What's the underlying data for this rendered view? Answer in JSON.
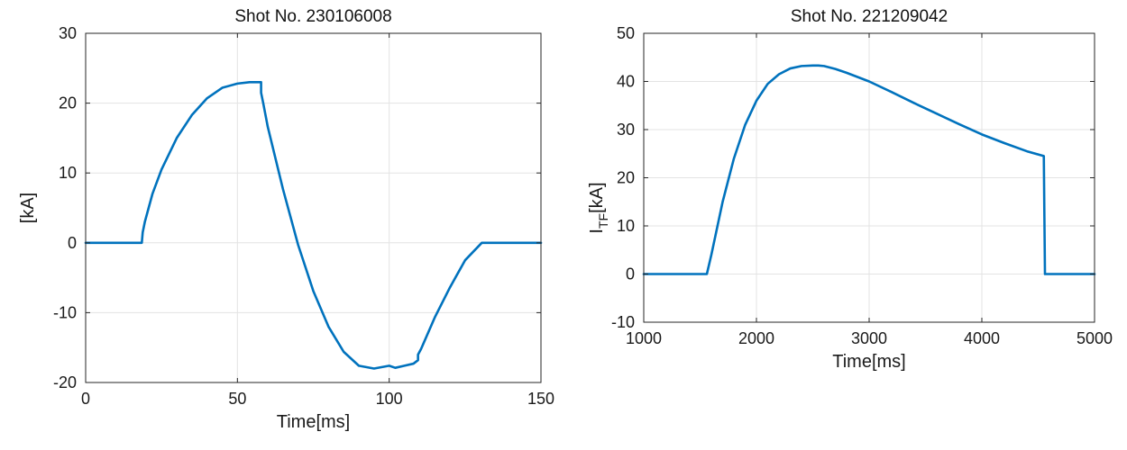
{
  "chart_data": [
    {
      "type": "line",
      "title": "Shot No. 230106008",
      "xlabel": "Time[ms]",
      "ylabel": "[kA]",
      "xlim": [
        0,
        150
      ],
      "ylim": [
        -20,
        30
      ],
      "xticks": [
        0,
        50,
        100,
        150
      ],
      "yticks": [
        -20,
        -10,
        0,
        10,
        20,
        30
      ],
      "grid": true,
      "series_color": "#0072bd",
      "series": [
        {
          "x": [
            0,
            18.5,
            18.8,
            19.5,
            22,
            25,
            30,
            35,
            40,
            45,
            50,
            54,
            57.8,
            57.8,
            58.5,
            60,
            65,
            70,
            75,
            80,
            85,
            90,
            95,
            100,
            102,
            105,
            108,
            109.5,
            109.5,
            110.5,
            115,
            120,
            125,
            130.5,
            131,
            150
          ],
          "y": [
            0,
            0,
            1.5,
            3,
            7,
            10.5,
            15,
            18.3,
            20.7,
            22.2,
            22.8,
            23.0,
            23.0,
            21.5,
            20.0,
            16.6,
            7.7,
            -0.3,
            -6.9,
            -12.0,
            -15.6,
            -17.6,
            -18.0,
            -17.6,
            -17.9,
            -17.6,
            -17.3,
            -16.8,
            -16.0,
            -15.2,
            -10.7,
            -6.4,
            -2.5,
            0,
            0,
            0
          ]
        }
      ]
    },
    {
      "type": "line",
      "title": "Shot No. 221209042",
      "xlabel": "Time[ms]",
      "ylabel": "I",
      "ylabel_sub": "TF",
      "ylabel_unit": "[kA]",
      "xlim": [
        1000,
        5000
      ],
      "ylim": [
        -10,
        50
      ],
      "xticks": [
        1000,
        2000,
        3000,
        4000,
        5000
      ],
      "xtick_labels": [
        "1000",
        "2000",
        "3000",
        "4000",
        "5000"
      ],
      "yticks": [
        -10,
        0,
        10,
        20,
        30,
        40,
        50
      ],
      "grid": true,
      "series_color": "#0072bd",
      "series": [
        {
          "x": [
            1000,
            1560,
            1565,
            1600,
            1700,
            1800,
            1900,
            2000,
            2100,
            2200,
            2300,
            2400,
            2500,
            2550,
            2600,
            2700,
            2800,
            3000,
            3200,
            3400,
            3600,
            3800,
            4000,
            4200,
            4400,
            4550,
            4555,
            4560,
            5000
          ],
          "y": [
            0,
            0,
            0.5,
            4,
            15,
            24,
            31,
            36,
            39.5,
            41.5,
            42.7,
            43.2,
            43.3,
            43.3,
            43.2,
            42.6,
            41.8,
            40,
            37.8,
            35.5,
            33.3,
            31.1,
            29.0,
            27.2,
            25.5,
            24.5,
            12,
            0,
            0
          ]
        }
      ]
    }
  ]
}
